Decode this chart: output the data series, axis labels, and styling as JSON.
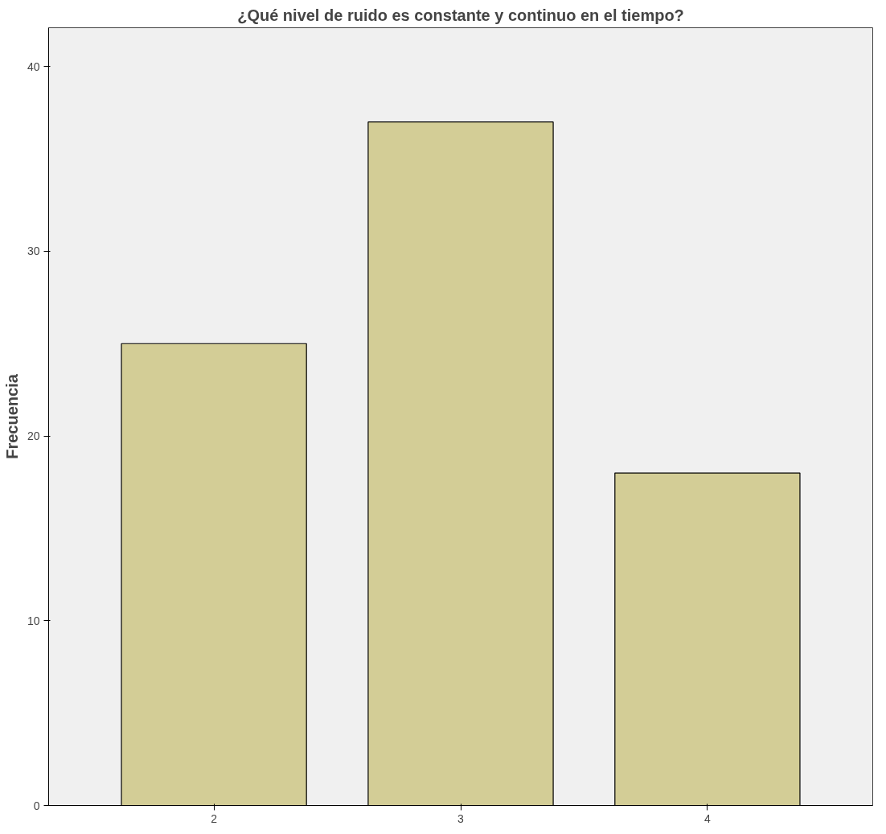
{
  "chart_data": {
    "type": "bar",
    "title": "¿Qué nivel de ruido es constante y continuo en el tiempo?",
    "ylabel": "Frecuencia",
    "categories": [
      "2",
      "3",
      "4"
    ],
    "values": [
      25,
      37,
      18
    ],
    "color": "#d3cd96",
    "ylim": [
      0,
      42.1
    ],
    "yticks": [
      0,
      10,
      20,
      30,
      40
    ],
    "grid": false
  }
}
